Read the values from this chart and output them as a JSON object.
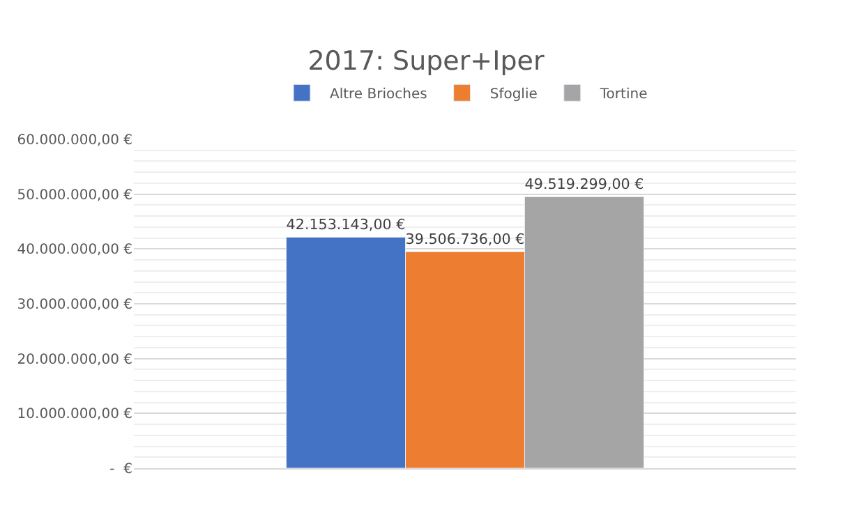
{
  "chart_data": {
    "type": "bar",
    "title": "2017: Super+Iper",
    "categories": [
      null
    ],
    "series": [
      {
        "name": "Altre Brioches",
        "color": "#4472c4",
        "values": [
          42153143
        ],
        "value_labels": [
          "42.153.143,00 €"
        ]
      },
      {
        "name": "Sfoglie",
        "color": "#ed7d31",
        "values": [
          39506736
        ],
        "value_labels": [
          "39.506.736,00 €"
        ]
      },
      {
        "name": "Tortine",
        "color": "#a5a5a5",
        "values": [
          49519299
        ],
        "value_labels": [
          "49.519.299,00 €"
        ]
      }
    ],
    "ylim": [
      0,
      60000000
    ],
    "yticks": [
      {
        "value": 0,
        "label": "-  €"
      },
      {
        "value": 10000000,
        "label": "10.000.000,00 €"
      },
      {
        "value": 20000000,
        "label": "20.000.000,00 €"
      },
      {
        "value": 30000000,
        "label": "30.000.000,00 €"
      },
      {
        "value": 40000000,
        "label": "40.000.000,00 €"
      },
      {
        "value": 50000000,
        "label": "50.000.000,00 €"
      },
      {
        "value": 60000000,
        "label": "60.000.000,00 €"
      }
    ],
    "grid": "y",
    "legend": "top"
  }
}
